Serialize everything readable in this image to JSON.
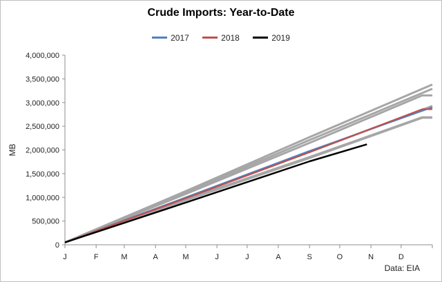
{
  "chart_data": {
    "type": "line",
    "title": "Crude Imports: Year-to-Date",
    "ylabel": "MB",
    "xlabel": "",
    "source_note": "Data: EIA",
    "ylim": [
      0,
      4000000
    ],
    "yticks": [
      0,
      500000,
      1000000,
      1500000,
      2000000,
      2500000,
      3000000,
      3500000,
      4000000
    ],
    "ytick_labels": [
      "0",
      "500,000",
      "1,000,000",
      "1,500,000",
      "2,000,000",
      "2,500,000",
      "3,000,000",
      "3,500,000",
      "4,000,000"
    ],
    "xlim": [
      0,
      365
    ],
    "month_ticks": [
      0,
      31,
      59,
      90,
      120,
      151,
      181,
      212,
      243,
      273,
      304,
      334
    ],
    "month_labels": [
      "J",
      "F",
      "M",
      "A",
      "M",
      "J",
      "J",
      "A",
      "S",
      "O",
      "N",
      "D"
    ],
    "legend_position": "top-center",
    "grid": false,
    "colors": {
      "2017": "#4f81bd",
      "2018": "#c0504d",
      "2019": "#000000",
      "history": "#a6a6a6"
    },
    "series": [
      {
        "name": "",
        "color": "#a6a6a6",
        "x": [
          0,
          120,
          243,
          365
        ],
        "values": [
          50000,
          1130000,
          2270000,
          3380000
        ]
      },
      {
        "name": "",
        "color": "#a6a6a6",
        "x": [
          0,
          120,
          243,
          365
        ],
        "values": [
          50000,
          1100000,
          2210000,
          3290000
        ]
      },
      {
        "name": "",
        "color": "#a6a6a6",
        "x": [
          0,
          120,
          243,
          355,
          365
        ],
        "values": [
          50000,
          1070000,
          2150000,
          3150000,
          3150000
        ]
      },
      {
        "name": "",
        "color": "#a6a6a6",
        "x": [
          0,
          120,
          243,
          365
        ],
        "values": [
          50000,
          990000,
          1960000,
          2930000
        ]
      },
      {
        "name": "",
        "color": "#a6a6a6",
        "x": [
          0,
          120,
          243,
          355,
          365
        ],
        "values": [
          50000,
          960000,
          1850000,
          2690000,
          2690000
        ]
      },
      {
        "name": "",
        "color": "#a6a6a6",
        "x": [
          0,
          120,
          243,
          355,
          365
        ],
        "values": [
          50000,
          940000,
          1830000,
          2680000,
          2680000
        ]
      },
      {
        "name": "2017",
        "color": "#4f81bd",
        "x": [
          0,
          120,
          243,
          365
        ],
        "values": [
          50000,
          1000000,
          1980000,
          2900000
        ]
      },
      {
        "name": "2018",
        "color": "#c0504d",
        "x": [
          0,
          120,
          243,
          355,
          365
        ],
        "values": [
          50000,
          980000,
          1950000,
          2860000,
          2860000
        ]
      },
      {
        "name": "2019",
        "color": "#000000",
        "x": [
          0,
          120,
          243,
          300
        ],
        "values": [
          50000,
          890000,
          1760000,
          2120000
        ]
      }
    ]
  }
}
